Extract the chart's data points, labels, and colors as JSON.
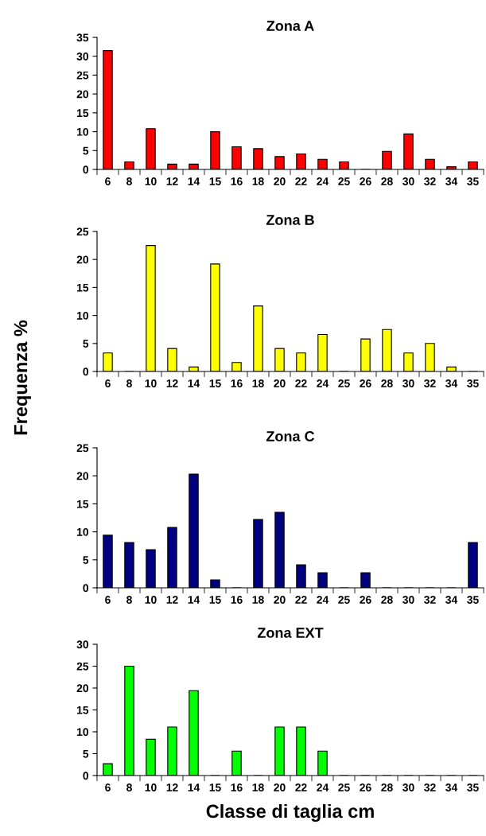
{
  "chart_data": [
    {
      "type": "bar",
      "title": "Zona A",
      "categories": [
        "6",
        "8",
        "10",
        "12",
        "14",
        "15",
        "16",
        "18",
        "20",
        "22",
        "24",
        "25",
        "26",
        "28",
        "30",
        "32",
        "34",
        "35"
      ],
      "values": [
        31.5,
        2,
        10.8,
        1.4,
        1.4,
        10,
        6,
        5.5,
        3.4,
        4.1,
        2.7,
        2,
        0,
        4.8,
        9.4,
        2.7,
        0.7,
        2
      ],
      "color": "#ff0000",
      "ylim": [
        0,
        35
      ],
      "yticks": [
        0,
        5,
        10,
        15,
        20,
        25,
        30,
        35
      ],
      "grid": false,
      "legend": false
    },
    {
      "type": "bar",
      "title": "Zona B",
      "ylabel": "Frequenza %",
      "categories": [
        "6",
        "8",
        "10",
        "12",
        "14",
        "15",
        "16",
        "18",
        "20",
        "22",
        "24",
        "25",
        "26",
        "28",
        "30",
        "32",
        "34",
        "35"
      ],
      "values": [
        3.3,
        0,
        22.5,
        4.1,
        0.8,
        19.2,
        1.6,
        11.7,
        4.1,
        3.3,
        6.6,
        0,
        5.8,
        7.5,
        3.3,
        5,
        0.8,
        0
      ],
      "color": "#ffff00",
      "ylim": [
        0,
        25
      ],
      "yticks": [
        0,
        5,
        10,
        15,
        20,
        25
      ],
      "grid": false,
      "legend": false
    },
    {
      "type": "bar",
      "title": "Zona C",
      "categories": [
        "6",
        "8",
        "10",
        "12",
        "14",
        "15",
        "16",
        "18",
        "20",
        "22",
        "24",
        "25",
        "26",
        "28",
        "30",
        "32",
        "34",
        "35"
      ],
      "values": [
        9.4,
        8.1,
        6.8,
        10.8,
        20.3,
        1.4,
        0,
        12.2,
        13.5,
        4.1,
        2.7,
        0,
        2.7,
        0,
        0,
        0,
        0,
        8.1
      ],
      "color": "#000080",
      "ylim": [
        0,
        25
      ],
      "yticks": [
        0,
        5,
        10,
        15,
        20,
        25
      ],
      "grid": false,
      "legend": false
    },
    {
      "type": "bar",
      "title": "Zona EXT",
      "xlabel": "Classe di taglia cm",
      "categories": [
        "6",
        "8",
        "10",
        "12",
        "14",
        "15",
        "16",
        "18",
        "20",
        "22",
        "24",
        "25",
        "26",
        "28",
        "30",
        "32",
        "34",
        "35"
      ],
      "values": [
        2.7,
        25,
        8.3,
        11.1,
        19.4,
        0,
        5.6,
        0,
        11.1,
        11.1,
        5.6,
        0,
        0,
        0,
        0,
        0,
        0,
        0
      ],
      "color": "#00ff00",
      "ylim": [
        0,
        30
      ],
      "yticks": [
        0,
        5,
        10,
        15,
        20,
        25,
        30
      ],
      "grid": false,
      "legend": false
    }
  ]
}
